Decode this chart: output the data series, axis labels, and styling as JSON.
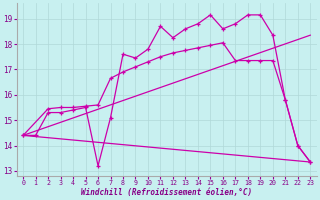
{
  "xlabel": "Windchill (Refroidissement éolien,°C)",
  "xlim": [
    -0.5,
    23.5
  ],
  "ylim": [
    12.8,
    19.6
  ],
  "yticks": [
    13,
    14,
    15,
    16,
    17,
    18,
    19
  ],
  "xticks": [
    0,
    1,
    2,
    3,
    4,
    5,
    6,
    7,
    8,
    9,
    10,
    11,
    12,
    13,
    14,
    15,
    16,
    17,
    18,
    19,
    20,
    21,
    22,
    23
  ],
  "background_color": "#c8f0f0",
  "grid_color": "#b0d8d8",
  "line_color": "#cc00aa",
  "line_width": 0.9,
  "line1_x": [
    0,
    1,
    2,
    3,
    4,
    5,
    6,
    7,
    8,
    9,
    10,
    11,
    12,
    13,
    14,
    15,
    16,
    17,
    18,
    19,
    20,
    21,
    22,
    23
  ],
  "line1_y": [
    14.4,
    14.4,
    15.3,
    15.3,
    15.4,
    15.5,
    13.2,
    15.1,
    17.6,
    17.45,
    17.8,
    18.7,
    18.25,
    18.6,
    18.8,
    19.15,
    18.6,
    18.8,
    19.15,
    19.15,
    18.35,
    15.8,
    14.0,
    13.35
  ],
  "line2_x": [
    0,
    2,
    3,
    4,
    5,
    6,
    7,
    8,
    9,
    10,
    11,
    12,
    13,
    14,
    15,
    16,
    17,
    18,
    19,
    20,
    21,
    22,
    23
  ],
  "line2_y": [
    14.4,
    15.45,
    15.5,
    15.5,
    15.55,
    15.6,
    16.65,
    16.9,
    17.1,
    17.3,
    17.5,
    17.65,
    17.75,
    17.85,
    17.95,
    18.05,
    17.35,
    17.35,
    17.35,
    17.35,
    15.8,
    14.0,
    13.35
  ],
  "line3_x": [
    0,
    23
  ],
  "line3_y": [
    14.4,
    18.35
  ],
  "line4_x": [
    0,
    23
  ],
  "line4_y": [
    14.4,
    13.35
  ]
}
